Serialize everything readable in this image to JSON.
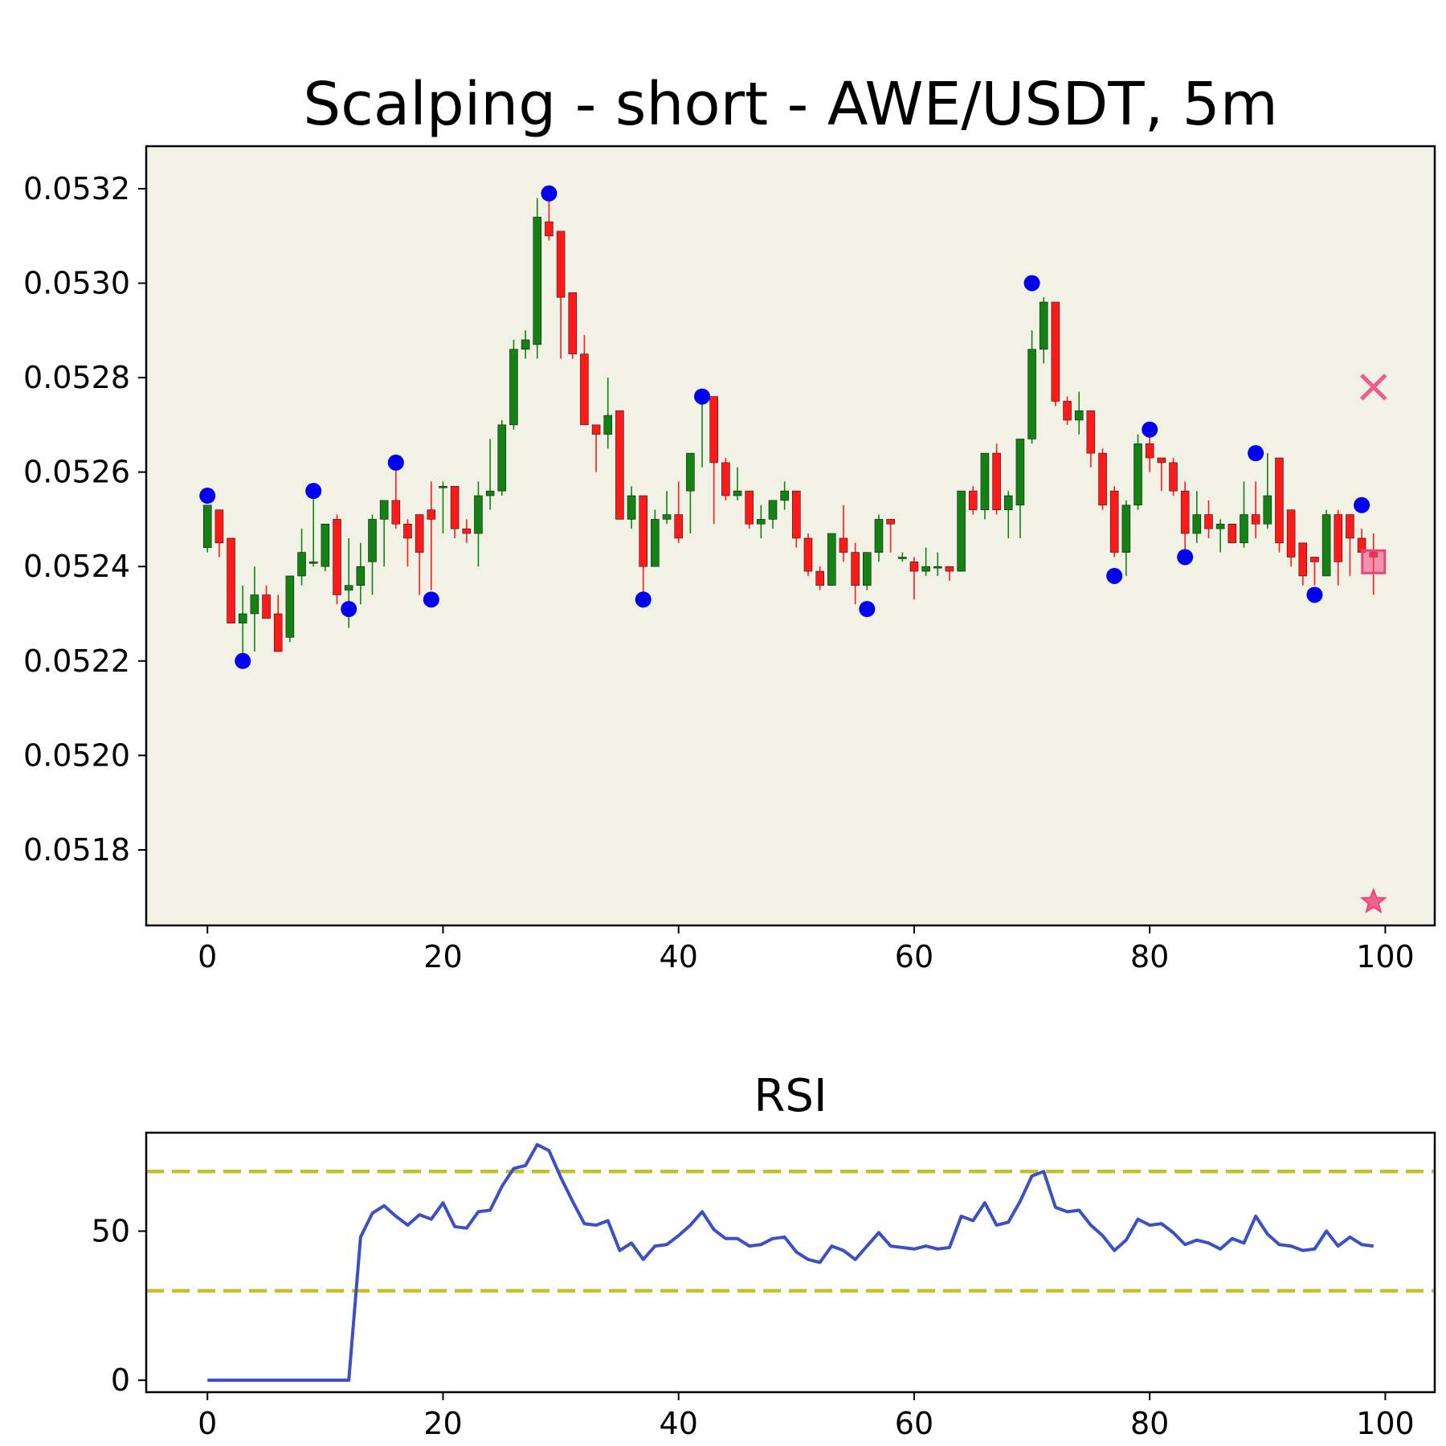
{
  "chart_data": [
    {
      "type": "candlestick",
      "title": "Scalping - short - AWE/USDT, 5m",
      "xlim": [
        -5.2,
        104.2
      ],
      "ylim": [
        0.05164,
        0.05329
      ],
      "x_ticks": [
        0,
        20,
        40,
        60,
        80,
        100
      ],
      "y_ticks": [
        0.0518,
        0.052,
        0.0522,
        0.0524,
        0.0526,
        0.0528,
        0.053,
        0.0532
      ],
      "y_tick_labels": [
        "0.0518",
        "0.0520",
        "0.0522",
        "0.0524",
        "0.0526",
        "0.0528",
        "0.0530",
        "0.0532"
      ],
      "grid": false,
      "colors": {
        "up": "#128212",
        "down": "#ff1a1a",
        "background": "#f2f1e6",
        "pivot": "#0000ee",
        "signal": "#ee4477"
      },
      "closes": [
        0.05253,
        0.05245,
        0.05228,
        0.0523,
        0.05234,
        0.05229,
        0.05222,
        0.05238,
        0.05243,
        0.05241,
        0.05249,
        0.05234,
        0.05236,
        0.0524,
        0.0525,
        0.05254,
        0.05249,
        0.05246,
        0.05243,
        0.0525,
        0.05257,
        0.05248,
        0.05247,
        0.05255,
        0.05256,
        0.0527,
        0.05286,
        0.05288,
        0.05314,
        0.0531,
        0.05297,
        0.05285,
        0.0527,
        0.05268,
        0.05272,
        0.0525,
        0.05255,
        0.0524,
        0.0525,
        0.05251,
        0.05246,
        0.05264,
        0.05276,
        0.05262,
        0.05255,
        0.05256,
        0.05249,
        0.0525,
        0.05254,
        0.05256,
        0.05246,
        0.05239,
        0.05236,
        0.05247,
        0.05243,
        0.05236,
        0.05243,
        0.0525,
        0.05249,
        0.05242,
        0.05239,
        0.0524,
        0.0524,
        0.05239,
        0.05256,
        0.05252,
        0.05264,
        0.05252,
        0.05255,
        0.05267,
        0.05286,
        0.05296,
        0.05275,
        0.05271,
        0.05273,
        0.05264,
        0.05253,
        0.05243,
        0.05253,
        0.05266,
        0.05263,
        0.05262,
        0.05256,
        0.05247,
        0.05251,
        0.05248,
        0.05249,
        0.05245,
        0.05251,
        0.05249,
        0.05255,
        0.05245,
        0.05242,
        0.05238,
        0.05241,
        0.05251,
        0.05241,
        0.05246,
        0.05243,
        0.05242
      ],
      "opens": [
        0.05244,
        0.05252,
        0.05246,
        0.05228,
        0.0523,
        0.05234,
        0.0523,
        0.05225,
        0.05238,
        0.05241,
        0.0524,
        0.0525,
        0.05235,
        0.05236,
        0.05241,
        0.0525,
        0.05254,
        0.05249,
        0.05251,
        0.05252,
        0.05257,
        0.05257,
        0.05248,
        0.05247,
        0.05255,
        0.05256,
        0.0527,
        0.05286,
        0.05287,
        0.05313,
        0.05311,
        0.05298,
        0.05285,
        0.0527,
        0.05268,
        0.05273,
        0.0525,
        0.05255,
        0.0524,
        0.0525,
        0.05251,
        0.05256,
        0.05275,
        0.05276,
        0.05262,
        0.05255,
        0.05256,
        0.05249,
        0.0525,
        0.05254,
        0.05256,
        0.05246,
        0.05239,
        0.05236,
        0.05246,
        0.05243,
        0.05236,
        0.05243,
        0.0525,
        0.05242,
        0.05241,
        0.05239,
        0.0524,
        0.0524,
        0.05239,
        0.05256,
        0.05252,
        0.05264,
        0.05252,
        0.05253,
        0.05267,
        0.05286,
        0.05296,
        0.05275,
        0.05271,
        0.05273,
        0.05264,
        0.05256,
        0.05243,
        0.05253,
        0.05266,
        0.05263,
        0.05262,
        0.05256,
        0.05247,
        0.05251,
        0.05248,
        0.05249,
        0.05245,
        0.05251,
        0.05249,
        0.05263,
        0.05252,
        0.05245,
        0.05242,
        0.05238,
        0.05251,
        0.05251,
        0.05246,
        0.05243
      ],
      "highs": [
        0.05253,
        0.05252,
        0.05246,
        0.05236,
        0.0524,
        0.05236,
        0.05234,
        0.05238,
        0.05248,
        0.05256,
        0.05249,
        0.05251,
        0.05246,
        0.05245,
        0.05251,
        0.05254,
        0.05262,
        0.0525,
        0.05251,
        0.05258,
        0.05258,
        0.05257,
        0.0525,
        0.05258,
        0.05267,
        0.05271,
        0.05288,
        0.0529,
        0.05318,
        0.0532,
        0.05311,
        0.05298,
        0.05289,
        0.0527,
        0.0528,
        0.05273,
        0.05257,
        0.05255,
        0.05252,
        0.05256,
        0.05258,
        0.05264,
        0.05276,
        0.05276,
        0.05263,
        0.05261,
        0.05256,
        0.05253,
        0.05254,
        0.05258,
        0.05256,
        0.05247,
        0.0524,
        0.05247,
        0.05253,
        0.05245,
        0.05243,
        0.05251,
        0.0525,
        0.05243,
        0.05242,
        0.05244,
        0.05243,
        0.0524,
        0.05256,
        0.05257,
        0.05264,
        0.05266,
        0.05256,
        0.05267,
        0.0529,
        0.05297,
        0.05296,
        0.05276,
        0.05277,
        0.05273,
        0.05265,
        0.05257,
        0.05254,
        0.05268,
        0.05269,
        0.05263,
        0.05263,
        0.05258,
        0.05256,
        0.05254,
        0.0525,
        0.05249,
        0.05258,
        0.05258,
        0.05264,
        0.05252,
        0.05246,
        0.05243,
        0.05242,
        0.05252,
        0.05252,
        0.05248,
        0.05248,
        0.05247
      ],
      "lows": [
        0.05243,
        0.05242,
        0.05228,
        0.0522,
        0.05222,
        0.05229,
        0.05222,
        0.05224,
        0.05236,
        0.0524,
        0.05239,
        0.05232,
        0.05227,
        0.05232,
        0.05234,
        0.0524,
        0.05248,
        0.0524,
        0.05234,
        0.05235,
        0.05247,
        0.05246,
        0.05245,
        0.0524,
        0.05252,
        0.05255,
        0.05269,
        0.05284,
        0.05284,
        0.05309,
        0.05284,
        0.05284,
        0.0527,
        0.0526,
        0.05265,
        0.0525,
        0.05248,
        0.05234,
        0.0524,
        0.05249,
        0.05245,
        0.05247,
        0.05261,
        0.05249,
        0.05254,
        0.05254,
        0.05248,
        0.05246,
        0.05248,
        0.05252,
        0.05244,
        0.05238,
        0.05235,
        0.05236,
        0.05241,
        0.05232,
        0.05235,
        0.05241,
        0.05243,
        0.05241,
        0.05233,
        0.05238,
        0.05238,
        0.05237,
        0.05239,
        0.05251,
        0.0525,
        0.05251,
        0.05246,
        0.05246,
        0.05266,
        0.05283,
        0.05274,
        0.0527,
        0.05268,
        0.05261,
        0.05252,
        0.05242,
        0.05238,
        0.05252,
        0.0526,
        0.05256,
        0.05255,
        0.05242,
        0.05245,
        0.05246,
        0.05243,
        0.05245,
        0.05244,
        0.05246,
        0.05248,
        0.05243,
        0.0524,
        0.05236,
        0.05236,
        0.0524,
        0.05236,
        0.05238,
        0.05243,
        0.05234
      ],
      "pivots": [
        [
          0,
          0.05255
        ],
        [
          3,
          0.0522
        ],
        [
          9,
          0.05256
        ],
        [
          12,
          0.05231
        ],
        [
          16,
          0.05262
        ],
        [
          19,
          0.05233
        ],
        [
          29,
          0.05319
        ],
        [
          37,
          0.05233
        ],
        [
          42,
          0.05276
        ],
        [
          56,
          0.05231
        ],
        [
          70,
          0.053
        ],
        [
          77,
          0.05238
        ],
        [
          80,
          0.05269
        ],
        [
          83,
          0.05242
        ],
        [
          89,
          0.05264
        ],
        [
          94,
          0.05234
        ],
        [
          98,
          0.05253
        ]
      ],
      "markers": [
        {
          "shape": "x",
          "x": 99,
          "y": 0.05278
        },
        {
          "shape": "square",
          "x": 99,
          "y": 0.05241
        },
        {
          "shape": "star",
          "x": 99,
          "y": 0.05169
        }
      ]
    },
    {
      "type": "line",
      "title": "RSI",
      "xlim": [
        -5.2,
        104.2
      ],
      "ylim": [
        -4,
        83
      ],
      "x_ticks": [
        0,
        20,
        40,
        60,
        80,
        100
      ],
      "y_ticks": [
        0,
        50
      ],
      "grid": false,
      "colors": {
        "line": "#3b4fc7",
        "reference": "#c8c02a"
      },
      "reference_lines": [
        70,
        30
      ],
      "x": [
        0,
        1,
        2,
        3,
        4,
        5,
        6,
        7,
        8,
        9,
        10,
        11,
        12,
        13,
        14,
        15,
        16,
        17,
        18,
        19,
        20,
        21,
        22,
        23,
        24,
        25,
        26,
        27,
        28,
        29,
        30,
        31,
        32,
        33,
        34,
        35,
        36,
        37,
        38,
        39,
        40,
        41,
        42,
        43,
        44,
        45,
        46,
        47,
        48,
        49,
        50,
        51,
        52,
        53,
        54,
        55,
        56,
        57,
        58,
        59,
        60,
        61,
        62,
        63,
        64,
        65,
        66,
        67,
        68,
        69,
        70,
        71,
        72,
        73,
        74,
        75,
        76,
        77,
        78,
        79,
        80,
        81,
        82,
        83,
        84,
        85,
        86,
        87,
        88,
        89,
        90,
        91,
        92,
        93,
        94,
        95,
        96,
        97,
        98,
        99
      ],
      "values": [
        0,
        0,
        0,
        0,
        0,
        0,
        0,
        0,
        0,
        0,
        0,
        0,
        0,
        48,
        56,
        58.5,
        55,
        52,
        55.5,
        54,
        59.5,
        51.5,
        51,
        56.5,
        57,
        65,
        71,
        72,
        79,
        77,
        68,
        60,
        52.5,
        52,
        53.5,
        43.5,
        46,
        40.5,
        45,
        45.5,
        48.5,
        52,
        56.5,
        50.5,
        47.5,
        47.5,
        45,
        45.5,
        47.5,
        48,
        43,
        40.5,
        39.5,
        45,
        43.5,
        40.5,
        45,
        49.5,
        45,
        44.5,
        44,
        45,
        44,
        44.5,
        55,
        53.5,
        59.5,
        52,
        53,
        60,
        68.5,
        70,
        58,
        56.5,
        57,
        52,
        48.5,
        43.5,
        47,
        54,
        52,
        52.5,
        49.5,
        45.5,
        47,
        46,
        44,
        47.5,
        46,
        55,
        49,
        45.5,
        45,
        43.5,
        44,
        50,
        45,
        48,
        45.5,
        45
      ]
    }
  ]
}
